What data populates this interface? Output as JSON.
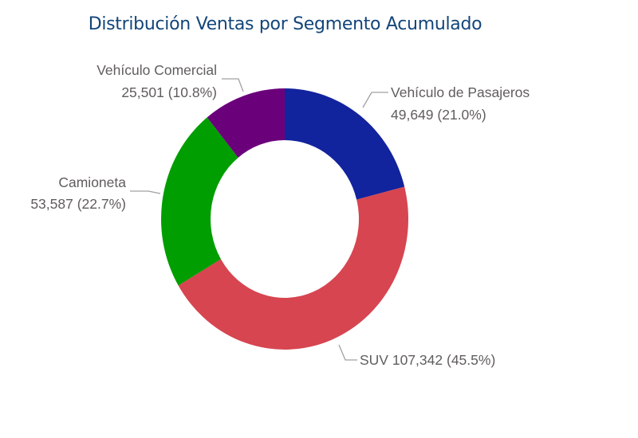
{
  "chart_data": {
    "type": "pie",
    "variant": "donut",
    "title": "Distribución Ventas por Segmento Acumulado",
    "slices": [
      {
        "label": "Vehículo de Pasajeros",
        "value": 49649,
        "value_text": "49,649",
        "percent_text": "(21.0%)",
        "color": "#12239e"
      },
      {
        "label": "SUV",
        "value": 107342,
        "value_text": "107,342",
        "percent_text": "(45.5%)",
        "color": "#d64550"
      },
      {
        "label": "Camioneta",
        "value": 53587,
        "value_text": "53,587",
        "percent_text": "(22.7%)",
        "color": "#009e00"
      },
      {
        "label": "Vehículo Comercial",
        "value": 25501,
        "value_text": "25,501",
        "percent_text": "(10.8%)",
        "color": "#6b007b"
      }
    ],
    "legend": "none",
    "start_angle": "top, clockwise"
  }
}
